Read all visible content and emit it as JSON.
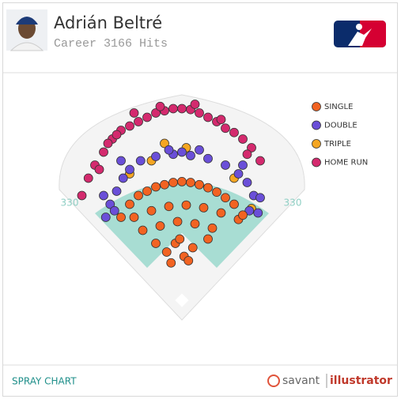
{
  "chart_data": {
    "type": "spray",
    "title": "Adrián Beltré",
    "subtitle": "Career 3166 Hits",
    "annotations": [
      "330",
      "330"
    ],
    "xlim": [
      -250,
      250
    ],
    "ylim": [
      0,
      480
    ],
    "legend": "top-right",
    "series": [
      {
        "name": "SINGLE",
        "color": "#f26322",
        "x": [
          -120,
          -100,
          -80,
          -60,
          -40,
          -20,
          0,
          20,
          40,
          60,
          80,
          100,
          120,
          -110,
          -70,
          -30,
          10,
          50,
          90,
          130,
          -90,
          -50,
          -10,
          30,
          70,
          -35,
          -15,
          5,
          25,
          -25,
          15,
          -5,
          -140,
          140,
          -60,
          60
        ],
        "y": [
          230,
          250,
          260,
          270,
          275,
          280,
          282,
          280,
          275,
          268,
          258,
          245,
          230,
          200,
          215,
          225,
          228,
          222,
          210,
          195,
          170,
          180,
          190,
          185,
          175,
          120,
          140,
          110,
          130,
          95,
          100,
          150,
          200,
          205,
          140,
          150
        ]
      },
      {
        "name": "DOUBLE",
        "color": "#6a4fd8",
        "x": [
          -175,
          -165,
          -150,
          -135,
          -120,
          -95,
          -60,
          -20,
          20,
          60,
          100,
          130,
          150,
          165,
          175,
          -180,
          180,
          -155,
          155,
          -140,
          140,
          -30,
          40,
          0
        ],
        "y": [
          200,
          230,
          260,
          290,
          310,
          330,
          340,
          345,
          342,
          335,
          320,
          300,
          280,
          250,
          210,
          250,
          245,
          215,
          215,
          330,
          320,
          355,
          355,
          350
        ]
      },
      {
        "name": "TRIPLE",
        "color": "#f5a623",
        "x": [
          -120,
          -40,
          10,
          120,
          160,
          -70
        ],
        "y": [
          300,
          370,
          360,
          290,
          220,
          330
        ]
      },
      {
        "name": "HOME RUN",
        "color": "#d42a6e",
        "x": [
          -230,
          -215,
          -200,
          -180,
          -160,
          -140,
          -120,
          -100,
          -80,
          -60,
          -40,
          -20,
          0,
          20,
          40,
          60,
          80,
          100,
          120,
          140,
          160,
          180,
          -190,
          -170,
          -150,
          -110,
          -50,
          30,
          90,
          150
        ],
        "y": [
          250,
          290,
          320,
          350,
          380,
          400,
          410,
          420,
          430,
          440,
          445,
          450,
          450,
          448,
          440,
          430,
          420,
          405,
          395,
          380,
          360,
          330,
          310,
          370,
          390,
          440,
          455,
          460,
          425,
          345
        ]
      }
    ]
  },
  "footer": {
    "label": "SPRAY CHART",
    "brand": [
      "savant",
      "illustrator"
    ]
  }
}
